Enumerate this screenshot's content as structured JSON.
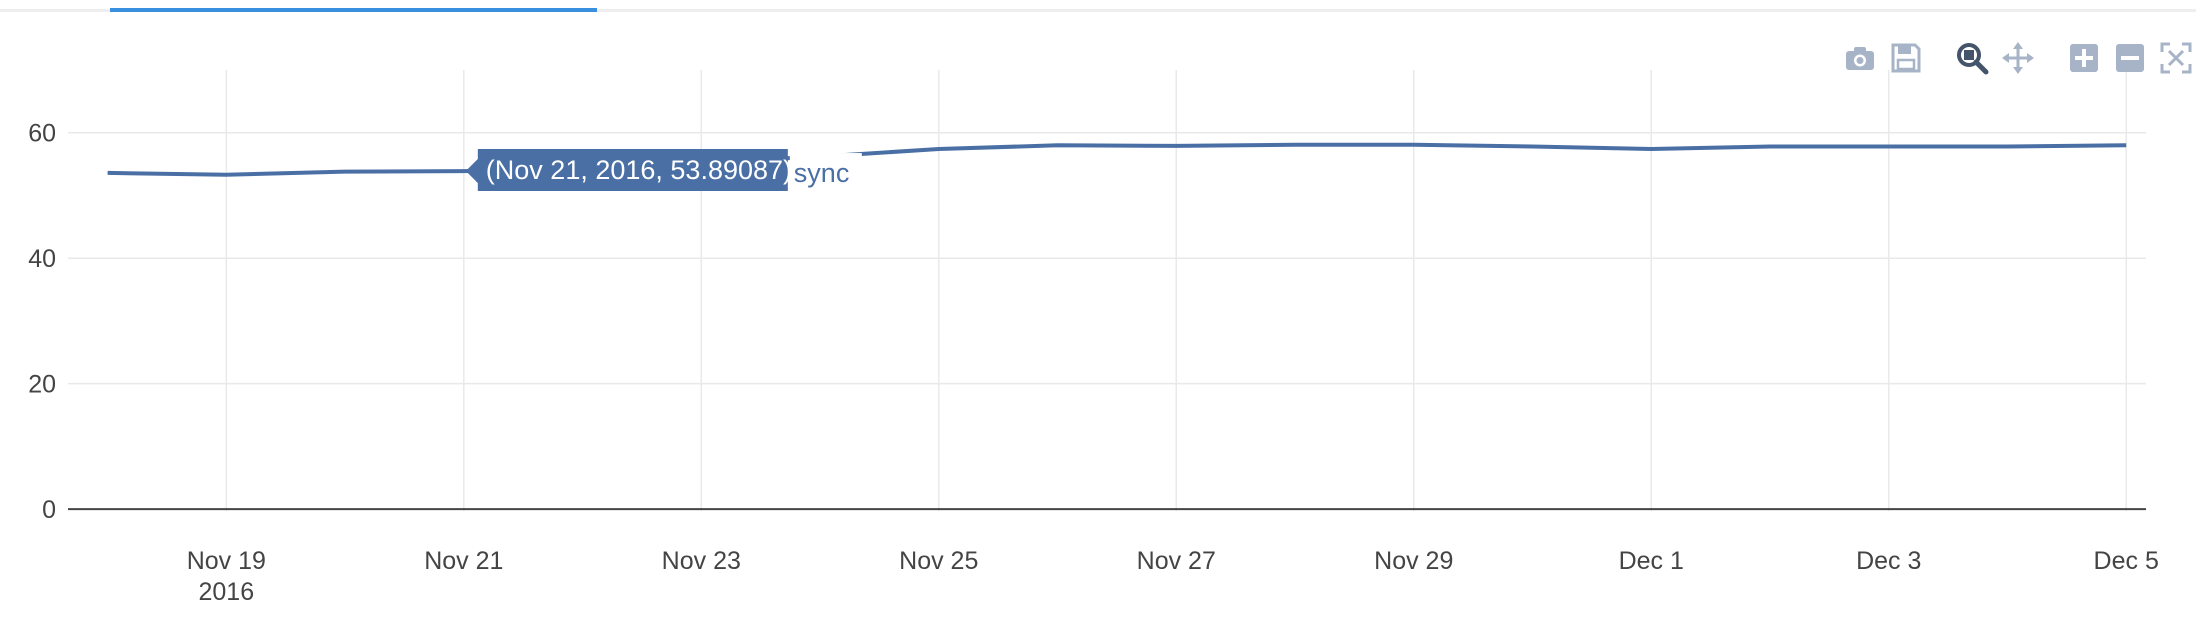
{
  "modebar": {
    "icons": [
      "camera-icon",
      "save-icon",
      "zoom-icon",
      "pan-icon",
      "zoom-in-icon",
      "zoom-out-icon",
      "autoscale-icon"
    ]
  },
  "colors": {
    "line": "#4a6fa5",
    "grid": "#e9e9e9",
    "axis": "#444444",
    "tab_active": "#3a90df",
    "icon": "#a7b4c7"
  },
  "chart_data": {
    "type": "line",
    "x_axis_type": "date",
    "series": [
      {
        "name": "sync",
        "x": [
          "2016-11-18",
          "2016-11-19",
          "2016-11-20",
          "2016-11-21",
          "2016-11-22",
          "2016-11-23",
          "2016-11-24",
          "2016-11-25",
          "2016-11-26",
          "2016-11-27",
          "2016-11-28",
          "2016-11-29",
          "2016-11-30",
          "2016-12-01",
          "2016-12-02",
          "2016-12-03",
          "2016-12-04",
          "2016-12-05"
        ],
        "y": [
          53.6,
          53.3,
          53.8,
          53.89087,
          54.3,
          55.3,
          56.2,
          57.4,
          58.0,
          57.9,
          58.1,
          58.1,
          57.8,
          57.4,
          57.8,
          57.8,
          57.8,
          58.0
        ]
      }
    ],
    "xlim": [
      "2016-11-17T16:00",
      "2016-12-05T04:00"
    ],
    "ylim": [
      -0.3,
      70
    ],
    "x_tick_labels": [
      "Nov 19",
      "Nov 21",
      "Nov 23",
      "Nov 25",
      "Nov 27",
      "Nov 29",
      "Dec 1",
      "Dec 3",
      "Dec 5"
    ],
    "x_tick_dates": [
      "2016-11-19",
      "2016-11-21",
      "2016-11-23",
      "2016-11-25",
      "2016-11-27",
      "2016-11-29",
      "2016-12-01",
      "2016-12-03",
      "2016-12-05"
    ],
    "x_tick_year_label": "2016",
    "y_ticks": [
      0,
      20,
      40,
      60
    ],
    "grid": true,
    "hover": {
      "x": "2016-11-21",
      "y": 53.89087,
      "text": "(Nov 21, 2016, 53.89087)",
      "series_label": "sync"
    }
  }
}
